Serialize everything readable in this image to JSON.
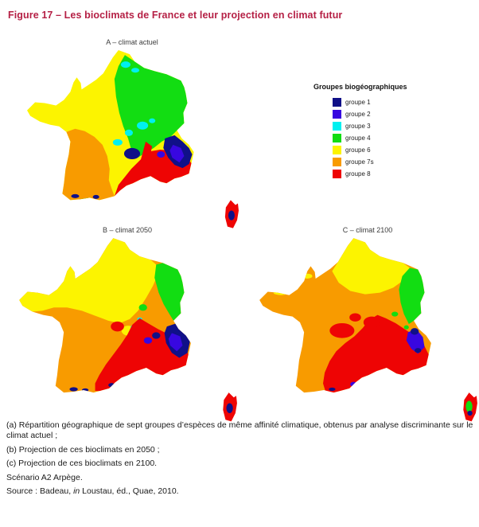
{
  "title": "Figure 17 – Les bioclimats de France et leur projection en climat futur",
  "title_color": "#b52045",
  "maps": [
    {
      "label": "A – climat actuel"
    },
    {
      "label": "B – climat 2050"
    },
    {
      "label": "C – climat 2100"
    }
  ],
  "legend": {
    "title": "Groupes biogéographiques",
    "items": [
      {
        "label": "groupe 1",
        "color": "#101088"
      },
      {
        "label": "groupe 2",
        "color": "#3807e0"
      },
      {
        "label": "groupe 3",
        "color": "#00f0f0"
      },
      {
        "label": "groupe 4",
        "color": "#12dd12"
      },
      {
        "label": "groupe 6",
        "color": "#fcf400"
      },
      {
        "label": "groupe 7s",
        "color": "#f89b00"
      },
      {
        "label": "groupe 8",
        "color": "#ee0404"
      }
    ]
  },
  "captions": {
    "a": "(a) Répartition géographique de sept groupes d’espèces de même affinité climatique, obtenus par analyse discriminante sur le climat actuel ;",
    "b": "(b) Projection de ces bioclimats en 2050 ;",
    "c": "(c) Projection de ces bioclimats en 2100.",
    "scenario": "Scénario A2 Arpège.",
    "source_prefix": "Source : Badeau, ",
    "source_in": "in",
    "source_suffix": " Loustau, éd., Quae, 2010."
  }
}
